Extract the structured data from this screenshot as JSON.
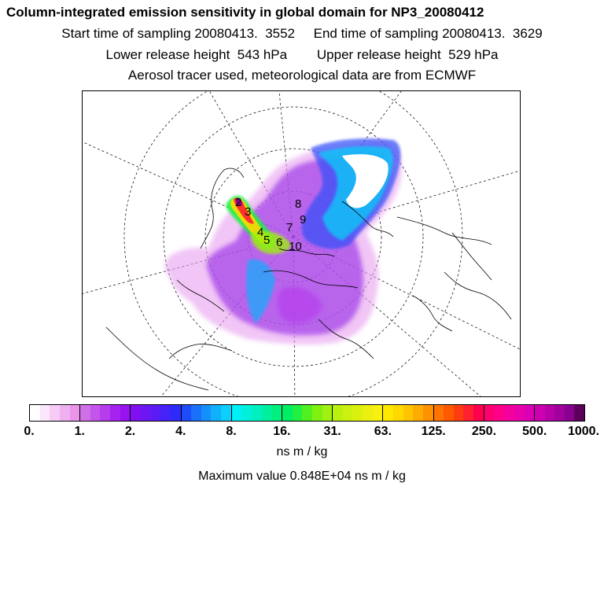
{
  "header": {
    "title": "Column-integrated emission sensitivity in global domain for NP3_20080412",
    "line2": "Start time of sampling 20080413.  3552     End time of sampling 20080413.  3629",
    "line3": "Lower release height  543 hPa        Upper release height  529 hPa",
    "line4": "Aerosol tracer used, meteorological data are from ECMWF"
  },
  "colorbar": {
    "ticks": [
      "0.",
      "1.",
      "2.",
      "4.",
      "8.",
      "16.",
      "31.",
      "63.",
      "125.",
      "250.",
      "500.",
      "1000."
    ],
    "colors": [
      [
        "#ffffff",
        "#fbe6fb",
        "#f6ccf6",
        "#f0b0f0",
        "#ea94ea"
      ],
      [
        "#d070e8",
        "#c455ea",
        "#b63cec",
        "#a622ee",
        "#9612f0"
      ],
      [
        "#8010f2",
        "#6c16f4",
        "#5a1cf6",
        "#4422f8",
        "#2e2afa"
      ],
      [
        "#1f4cfb",
        "#1a70fb",
        "#1590fb",
        "#10b0fb",
        "#0ad0fb"
      ],
      [
        "#00f0f8",
        "#00f0dc",
        "#00f0c0",
        "#00f0a0",
        "#00f080"
      ],
      [
        "#00ee64",
        "#20f040",
        "#50f020",
        "#80f010",
        "#a0f010"
      ],
      [
        "#b8f010",
        "#ccf010",
        "#dcf010",
        "#ecf010",
        "#f8f010"
      ],
      [
        "#ffe800",
        "#ffd800",
        "#ffc400",
        "#ffac00",
        "#ff9000"
      ],
      [
        "#ff7400",
        "#ff5a00",
        "#ff3c10",
        "#ff2030",
        "#ff0050"
      ],
      [
        "#ff0070",
        "#ff0088",
        "#f4009c",
        "#e800a8",
        "#dc00b4"
      ],
      [
        "#cc00b0",
        "#b800a8",
        "#a0009c",
        "#880090",
        "#5a005a"
      ]
    ]
  },
  "plume_markers": [
    "2",
    "3",
    "4",
    "5",
    "6",
    "7",
    "8",
    "9",
    "10"
  ],
  "units_label": "ns m / kg",
  "max_value_text": "Maximum value  0.848E+04 ns m / kg"
}
